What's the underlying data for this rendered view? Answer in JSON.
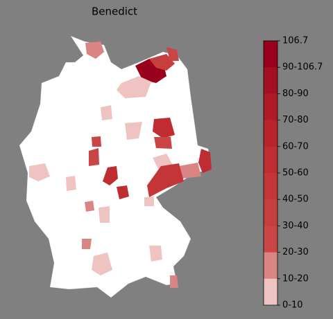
{
  "title": "Benedict",
  "colorbar": {
    "labels": [
      "106.7",
      "90-106.7",
      "80-90",
      "70-80",
      "60-70",
      "50-60",
      "40-50",
      "30-40",
      "20-30",
      "10-20",
      "0-10"
    ],
    "colors": [
      "#99001c",
      "#a50f22",
      "#b01a26",
      "#b9232b",
      "#bf2c31",
      "#c33537",
      "#c73e3e",
      "#ca4646",
      "#da8484",
      "#f0c3c3"
    ],
    "bottom_color": "#ffffff"
  }
}
